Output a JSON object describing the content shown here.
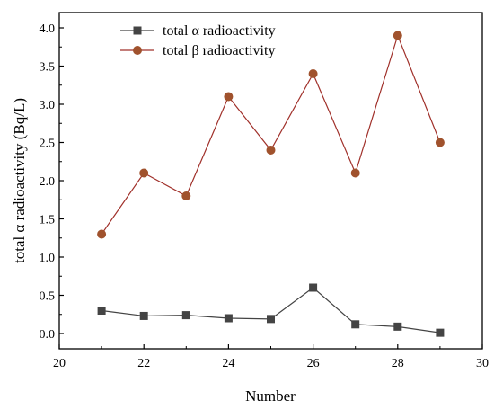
{
  "chart_data": {
    "type": "line",
    "xlabel": "Number",
    "ylabel": "total α radioactivity (Bq/L)",
    "xlim": [
      20,
      30
    ],
    "ylim": [
      -0.2,
      4.2
    ],
    "x_ticks": [
      "20",
      "22",
      "24",
      "26",
      "28",
      "30"
    ],
    "y_ticks": [
      "0.0",
      "0.5",
      "1.0",
      "1.5",
      "2.0",
      "2.5",
      "3.0",
      "3.5",
      "4.0"
    ],
    "grid": false,
    "legend_position": "top-center",
    "series": [
      {
        "name": "total α radioactivity",
        "marker": "square",
        "line_color": "#444444",
        "marker_color": "#444444",
        "x": [
          21,
          22,
          23,
          24,
          25,
          26,
          27,
          28,
          29
        ],
        "y": [
          0.3,
          0.23,
          0.24,
          0.2,
          0.19,
          0.6,
          0.12,
          0.09,
          0.01
        ]
      },
      {
        "name": "total β radioactivity",
        "marker": "circle",
        "line_color": "#a0302a",
        "marker_color": "#a0522d",
        "x": [
          21,
          22,
          23,
          24,
          25,
          26,
          27,
          28,
          29
        ],
        "y": [
          1.3,
          2.1,
          1.8,
          3.1,
          2.4,
          3.4,
          2.1,
          3.9,
          2.5
        ]
      }
    ]
  }
}
